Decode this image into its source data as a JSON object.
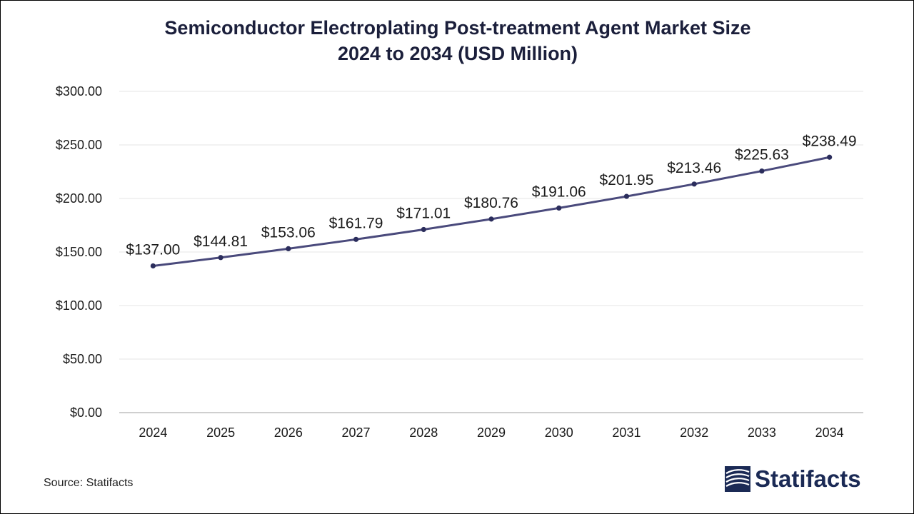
{
  "page": {
    "title_line1": "Semiconductor Electroplating Post-treatment Agent Market Size",
    "title_line2": "2024 to 2034 (USD Million)",
    "source": "Source: Statifacts",
    "brand": "Statifacts",
    "brand_icon": "statifacts-logo-icon"
  },
  "colors": {
    "line": "#4a4a7c",
    "marker": "#2b2d5c",
    "grid": "#e6e6e6",
    "axis": "#bfbfbf",
    "text": "#1a1a1a",
    "brand": "#1b2a55"
  },
  "chart_data": {
    "type": "line",
    "categories": [
      "2024",
      "2025",
      "2026",
      "2027",
      "2028",
      "2029",
      "2030",
      "2031",
      "2032",
      "2033",
      "2034"
    ],
    "series": [
      {
        "values": [
          137.0,
          144.81,
          153.06,
          161.79,
          171.01,
          180.76,
          191.06,
          201.95,
          213.46,
          225.63,
          238.49
        ],
        "labels": [
          "$137.00",
          "$144.81",
          "$153.06",
          "$161.79",
          "$171.01",
          "$180.76",
          "$191.06",
          "$201.95",
          "$213.46",
          "$225.63",
          "$238.49"
        ]
      }
    ],
    "ylim": [
      0,
      300
    ],
    "yticks": [
      0,
      50,
      100,
      150,
      200,
      250,
      300
    ],
    "ytick_labels": [
      "$0.00",
      "$50.00",
      "$100.00",
      "$150.00",
      "$200.00",
      "$250.00",
      "$300.00"
    ],
    "grid": true,
    "legend": "none"
  }
}
